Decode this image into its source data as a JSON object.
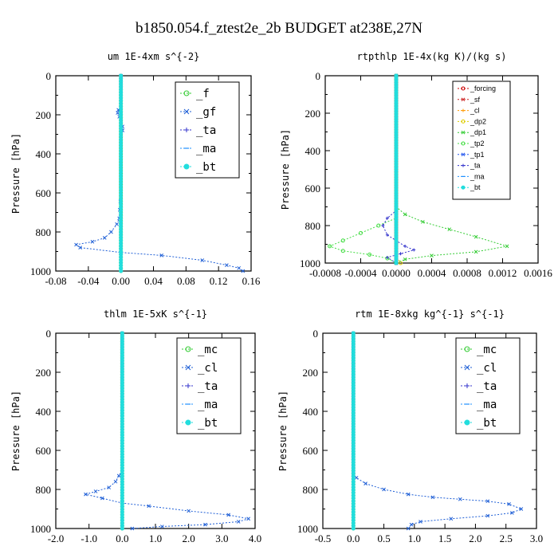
{
  "figure_title": "b1850.054.f_ztest2e_2b  BUDGET at238E,27N",
  "chart_data": [
    {
      "type": "line",
      "title": "um   1E-4xm s^{-2}",
      "ylabel": "Pressure [hPa]",
      "xlim": [
        -0.08,
        0.16
      ],
      "ylim": [
        1000,
        0
      ],
      "xticks": [
        "-0.08",
        "-0.04",
        "0.00",
        "0.04",
        "0.08",
        "0.12",
        "0.16"
      ],
      "yticks": [
        "0",
        "200",
        "400",
        "600",
        "800",
        "1000"
      ],
      "legend_position": "top-right",
      "series": [
        {
          "name": "_f",
          "color": "#33cc33",
          "marker": "o",
          "points": [
            [
              0,
              0
            ],
            [
              0,
              100
            ],
            [
              0,
              200
            ],
            [
              0,
              300
            ],
            [
              0,
              400
            ],
            [
              0,
              500
            ],
            [
              0,
              600
            ],
            [
              0,
              700
            ],
            [
              0,
              800
            ],
            [
              0,
              900
            ],
            [
              0,
              1000
            ]
          ]
        },
        {
          "name": "_gf",
          "color": "#1f5fd6",
          "marker": "x",
          "points": [
            [
              0,
              0
            ],
            [
              0,
              160
            ],
            [
              -0.003,
              175
            ],
            [
              -0.004,
              190
            ],
            [
              -0.002,
              210
            ],
            [
              0.002,
              260
            ],
            [
              0.002,
              280
            ],
            [
              0,
              320
            ],
            [
              0,
              600
            ],
            [
              -0.002,
              730
            ],
            [
              -0.005,
              760
            ],
            [
              -0.012,
              800
            ],
            [
              -0.02,
              830
            ],
            [
              -0.035,
              850
            ],
            [
              -0.055,
              865
            ],
            [
              -0.05,
              880
            ],
            [
              0.0,
              905
            ],
            [
              0.05,
              920
            ],
            [
              0.1,
              945
            ],
            [
              0.13,
              970
            ],
            [
              0.145,
              985
            ],
            [
              0.15,
              1000
            ]
          ]
        },
        {
          "name": "_ta",
          "color": "#3333cc",
          "marker": "+",
          "points": [
            [
              0,
              0
            ],
            [
              0,
              1000
            ]
          ]
        },
        {
          "name": "_ma",
          "color": "#1e90ff",
          "marker": "-",
          "points": [
            [
              0,
              0
            ],
            [
              0,
              1000
            ]
          ]
        },
        {
          "name": "_bt",
          "color": "#22dddd",
          "marker": "*",
          "points": [
            [
              0,
              0
            ],
            [
              0,
              1000
            ]
          ]
        }
      ]
    },
    {
      "type": "line",
      "title": "rtpthlp   1E-4x(kg K)/(kg s)",
      "ylabel": "Pressure [hPa]",
      "xlim": [
        -0.0008,
        0.0016
      ],
      "ylim": [
        1000,
        0
      ],
      "xticks": [
        "-0.0008",
        "-0.0004",
        "0.0000",
        "0.0004",
        "0.0008",
        "0.0012",
        "0.0016"
      ],
      "yticks": [
        "0",
        "200",
        "400",
        "600",
        "800",
        "1000"
      ],
      "legend_position": "top-right",
      "series": [
        {
          "name": "_forcing",
          "color": "#cc0000",
          "marker": "o",
          "points": [
            [
              0,
              0
            ],
            [
              0,
              1000
            ]
          ]
        },
        {
          "name": "_sf",
          "color": "#cc2222",
          "marker": "x",
          "points": [
            [
              0,
              0
            ],
            [
              0,
              1000
            ]
          ]
        },
        {
          "name": "_cl",
          "color": "#ff9900",
          "marker": "+",
          "points": [
            [
              0,
              0
            ],
            [
              0,
              1000
            ]
          ]
        },
        {
          "name": "_dp2",
          "color": "#ddcc00",
          "marker": "o",
          "points": [
            [
              0,
              0
            ],
            [
              0,
              960
            ],
            [
              5e-05,
              1000
            ]
          ]
        },
        {
          "name": "_dp1",
          "color": "#33cc33",
          "marker": "x",
          "points": [
            [
              0,
              0
            ],
            [
              0,
              700
            ],
            [
              0.0001,
              740
            ],
            [
              0.0003,
              780
            ],
            [
              0.0006,
              820
            ],
            [
              0.0009,
              860
            ],
            [
              0.00125,
              910
            ],
            [
              0.0009,
              940
            ],
            [
              0.0004,
              960
            ],
            [
              0.0001,
              980
            ],
            [
              0,
              1000
            ]
          ]
        },
        {
          "name": "_tp2",
          "color": "#44dd44",
          "marker": "o",
          "points": [
            [
              0,
              0
            ],
            [
              0,
              760
            ],
            [
              -0.0002,
              800
            ],
            [
              -0.0004,
              840
            ],
            [
              -0.0006,
              880
            ],
            [
              -0.00075,
              910
            ],
            [
              -0.0006,
              935
            ],
            [
              -0.0003,
              955
            ],
            [
              -0.0001,
              975
            ],
            [
              0,
              1000
            ]
          ]
        },
        {
          "name": "_tp1",
          "color": "#2255ee",
          "marker": "x",
          "points": [
            [
              0,
              0
            ],
            [
              0,
              1000
            ]
          ]
        },
        {
          "name": "_ta",
          "color": "#3333cc",
          "marker": "+",
          "points": [
            [
              0,
              0
            ],
            [
              0,
              720
            ],
            [
              -0.0001,
              760
            ],
            [
              -0.00015,
              800
            ],
            [
              -0.0001,
              850
            ],
            [
              0.0001,
              910
            ],
            [
              0.0002,
              930
            ],
            [
              5e-05,
              950
            ],
            [
              -0.0001,
              970
            ],
            [
              0,
              1000
            ]
          ]
        },
        {
          "name": "_ma",
          "color": "#1e90ff",
          "marker": "-",
          "points": [
            [
              0,
              0
            ],
            [
              0,
              1000
            ]
          ]
        },
        {
          "name": "_bt",
          "color": "#22dddd",
          "marker": "*",
          "points": [
            [
              0,
              0
            ],
            [
              0,
              1000
            ]
          ]
        }
      ]
    },
    {
      "type": "line",
      "title": "thlm   1E-5xK s^{-1}",
      "ylabel": "Pressure [hPa]",
      "xlim": [
        -2.0,
        4.0
      ],
      "ylim": [
        1000,
        0
      ],
      "xticks": [
        "-2.0",
        "-1.0",
        "0.0",
        "1.0",
        "2.0",
        "3.0",
        "4.0"
      ],
      "yticks": [
        "0",
        "200",
        "400",
        "600",
        "800",
        "1000"
      ],
      "legend_position": "top-right",
      "series": [
        {
          "name": "_mc",
          "color": "#33cc33",
          "marker": "o",
          "points": [
            [
              0,
              0
            ],
            [
              0,
              1000
            ]
          ]
        },
        {
          "name": "_cl",
          "color": "#1f5fd6",
          "marker": "x",
          "points": [
            [
              0,
              0
            ],
            [
              0,
              700
            ],
            [
              -0.1,
              730
            ],
            [
              -0.2,
              760
            ],
            [
              -0.4,
              790
            ],
            [
              -0.8,
              810
            ],
            [
              -1.1,
              825
            ],
            [
              -0.6,
              845
            ],
            [
              0.0,
              870
            ],
            [
              0.8,
              885
            ],
            [
              2.0,
              910
            ],
            [
              3.2,
              930
            ],
            [
              3.8,
              950
            ],
            [
              3.5,
              965
            ],
            [
              2.5,
              980
            ],
            [
              1.2,
              990
            ],
            [
              0.3,
              1000
            ]
          ]
        },
        {
          "name": "_ta",
          "color": "#3333cc",
          "marker": "+",
          "points": [
            [
              0,
              0
            ],
            [
              0,
              1000
            ]
          ]
        },
        {
          "name": "_ma",
          "color": "#1e90ff",
          "marker": "-",
          "points": [
            [
              0,
              0
            ],
            [
              0,
              1000
            ]
          ]
        },
        {
          "name": "_bt",
          "color": "#22dddd",
          "marker": "*",
          "points": [
            [
              0,
              0
            ],
            [
              0,
              1000
            ]
          ]
        }
      ]
    },
    {
      "type": "line",
      "title": "rtm   1E-8xkg kg^{-1} s^{-1}",
      "ylabel": "Pressure [hPa]",
      "xlim": [
        -0.5,
        3.0
      ],
      "ylim": [
        1000,
        0
      ],
      "xticks": [
        "-0.5",
        "0.0",
        "0.5",
        "1.0",
        "1.5",
        "2.0",
        "2.5",
        "3.0"
      ],
      "yticks": [
        "0",
        "200",
        "400",
        "600",
        "800",
        "1000"
      ],
      "legend_position": "top-right",
      "series": [
        {
          "name": "_mc",
          "color": "#33cc33",
          "marker": "o",
          "points": [
            [
              0,
              0
            ],
            [
              0,
              1000
            ]
          ]
        },
        {
          "name": "_cl",
          "color": "#1f5fd6",
          "marker": "x",
          "points": [
            [
              0,
              0
            ],
            [
              0,
              720
            ],
            [
              0.05,
              740
            ],
            [
              0.2,
              770
            ],
            [
              0.5,
              800
            ],
            [
              0.9,
              825
            ],
            [
              1.3,
              840
            ],
            [
              1.75,
              850
            ],
            [
              2.2,
              860
            ],
            [
              2.55,
              875
            ],
            [
              2.75,
              900
            ],
            [
              2.6,
              920
            ],
            [
              2.2,
              935
            ],
            [
              1.6,
              950
            ],
            [
              1.1,
              965
            ],
            [
              0.95,
              980
            ],
            [
              0.9,
              1000
            ]
          ]
        },
        {
          "name": "_ta",
          "color": "#3333cc",
          "marker": "+",
          "points": [
            [
              0,
              0
            ],
            [
              0,
              1000
            ]
          ]
        },
        {
          "name": "_ma",
          "color": "#1e90ff",
          "marker": "-",
          "points": [
            [
              0,
              0
            ],
            [
              0,
              1000
            ]
          ]
        },
        {
          "name": "_bt",
          "color": "#22dddd",
          "marker": "*",
          "points": [
            [
              0,
              0
            ],
            [
              0,
              1000
            ]
          ]
        }
      ]
    }
  ]
}
